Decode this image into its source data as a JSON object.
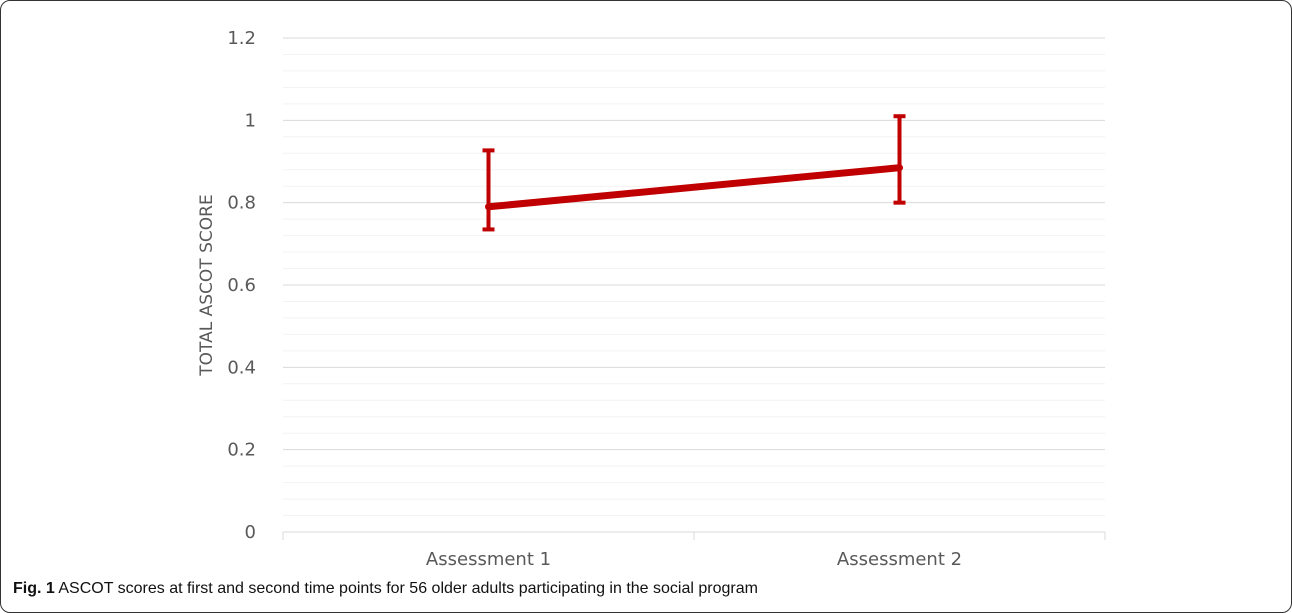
{
  "caption": {
    "label": "Fig. 1",
    "text": "ASCOT scores at first and second time points for 56 older adults participating in the social program"
  },
  "chart_data": {
    "type": "line",
    "categories": [
      "Assessment 1",
      "Assessment 2"
    ],
    "series": [
      {
        "values": [
          0.79,
          0.885
        ],
        "error_low": [
          0.735,
          0.8
        ],
        "error_high": [
          0.927,
          1.01
        ],
        "color": "#c00000"
      }
    ],
    "title": "",
    "xlabel": "",
    "ylabel": "TOTAL ASCOT SCORE",
    "ylim": [
      0,
      1.2
    ],
    "yticks": [
      "0",
      "0.2",
      "0.4",
      "0.6",
      "0.8",
      "1",
      "1.2"
    ],
    "ytick_values": [
      0,
      0.2,
      0.4,
      0.6,
      0.8,
      1,
      1.2
    ],
    "minor_grid_step": 0.04,
    "grid": true,
    "legend": "none"
  }
}
